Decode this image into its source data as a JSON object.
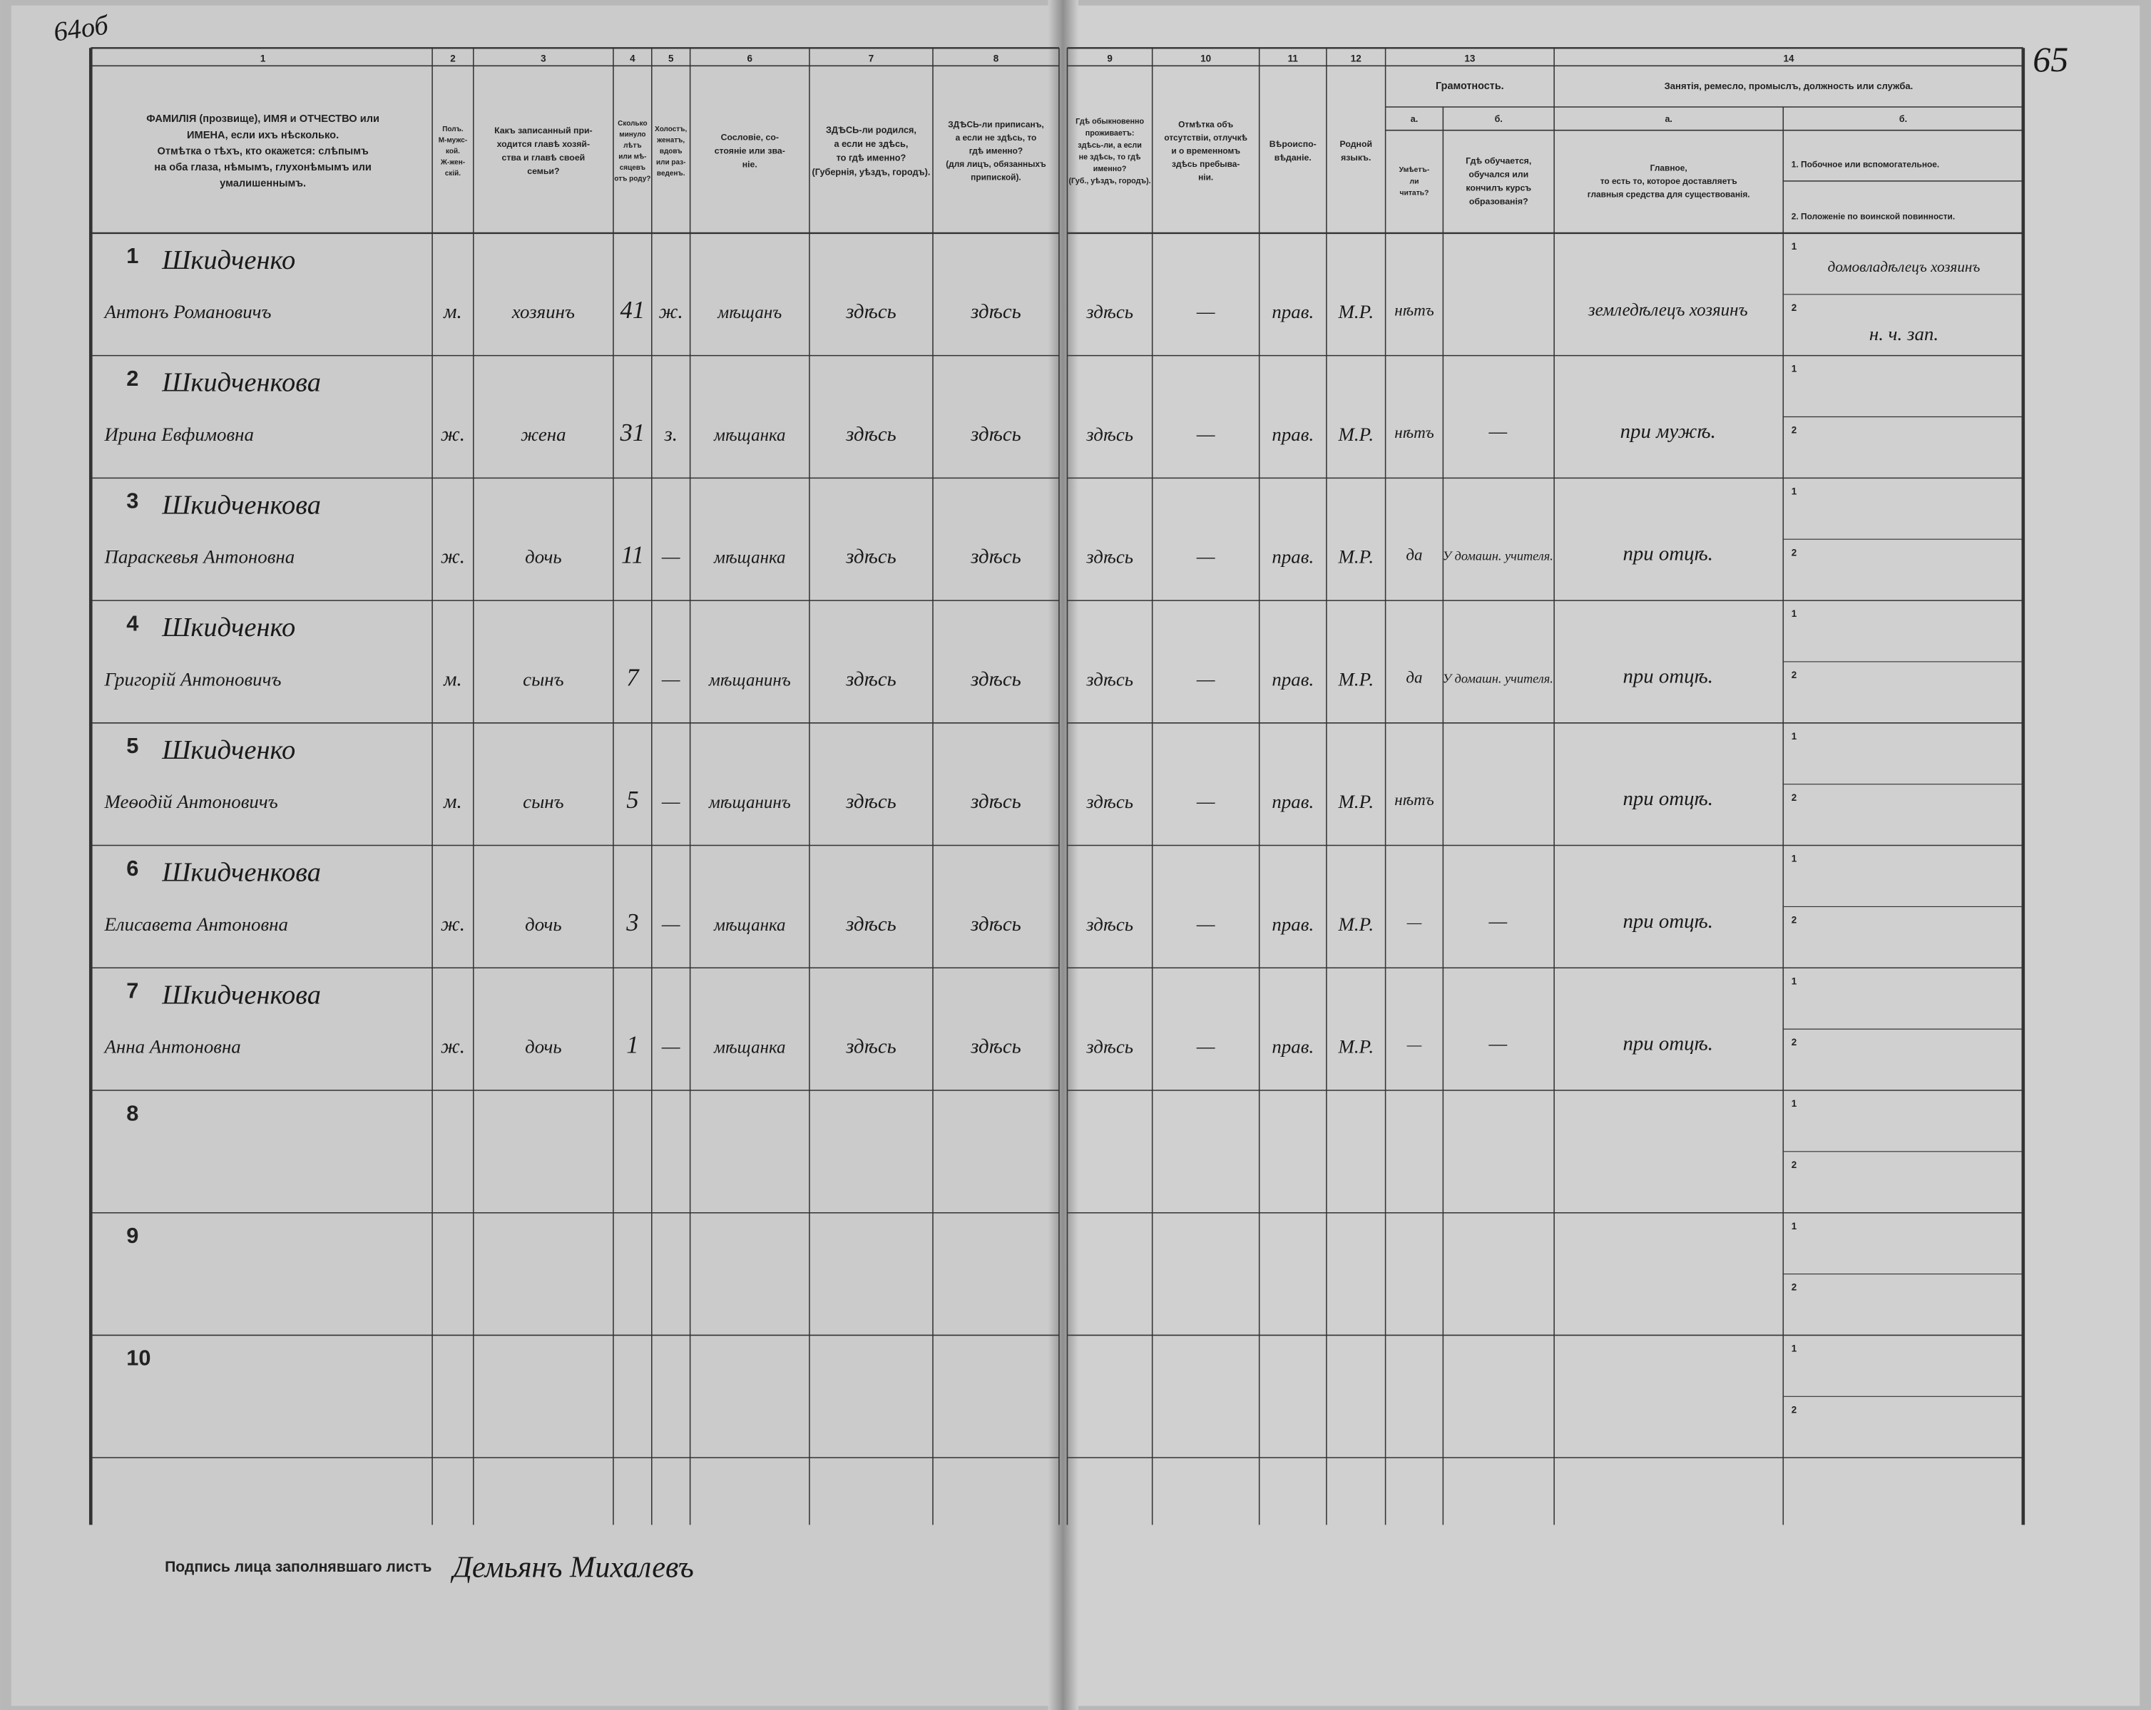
{
  "page_numbers": {
    "left": "64об",
    "right": "65"
  },
  "columns": [
    {
      "number": "1",
      "header": [
        "ФАМИЛІЯ (прозвище), ИМЯ и ОТЧЕСТВО или",
        "ИМЕНА, если ихъ нѣсколько.",
        "Отмѣтка о тѣхъ, кто окажется: слѣпымъ",
        "на оба глаза, нѣмымъ, глухонѣмымъ или",
        "умалишеннымъ."
      ]
    },
    {
      "number": "2",
      "header": [
        "Полъ.",
        "М-мужс-",
        "кой.",
        "Ж-жен-",
        "скій."
      ]
    },
    {
      "number": "3",
      "header": [
        "Какъ записанный при-",
        "ходится главѣ хозяй-",
        "ства и главѣ своей",
        "семьи?"
      ]
    },
    {
      "number": "4",
      "header": [
        "Сколько",
        "минуло",
        "лѣтъ",
        "или мѣ-",
        "сяцевъ",
        "отъ роду?"
      ]
    },
    {
      "number": "5",
      "header": [
        "Холостъ,",
        "женатъ,",
        "вдовъ",
        "или раз-",
        "веденъ."
      ]
    },
    {
      "number": "6",
      "header": [
        "Сословіе, со-",
        "стояніе или зва-",
        "ніе."
      ]
    },
    {
      "number": "7",
      "header": [
        "ЗДѢСЬ-ли родился,",
        "а если не здѣсь,",
        "то гдѣ именно?",
        "(Губернія, уѣздъ, городъ)."
      ]
    },
    {
      "number": "8",
      "header": [
        "ЗДѢСЬ-ли приписанъ,",
        "а если не здѣсь, то",
        "гдѣ именно?",
        "(для лицъ, обязанныхъ",
        "припиской)."
      ]
    },
    {
      "number": "9",
      "header": [
        "Гдѣ обыкновенно",
        "проживаетъ:",
        "здѣсь-ли, а если",
        "не здѣсь, то гдѣ",
        "именно?",
        "(Губ., уѣздъ, городъ)."
      ]
    },
    {
      "number": "10",
      "header": [
        "Отмѣтка объ",
        "отсутствіи, отлучкѣ",
        "и о временномъ",
        "здѣсь пребыва-",
        "ніи."
      ]
    },
    {
      "number": "11",
      "header": [
        "Вѣроиспо-",
        "вѣданіе."
      ]
    },
    {
      "number": "12",
      "header": [
        "Родной",
        "языкъ."
      ]
    },
    {
      "number": "13",
      "title": "Грамотность.",
      "sub": [
        {
          "letter": "а.",
          "header": [
            "Умѣетъ-",
            "ли",
            "читать?"
          ]
        },
        {
          "letter": "б.",
          "header": [
            "Гдѣ обучается,",
            "обучался или",
            "кончилъ курсъ",
            "образованія?"
          ]
        }
      ]
    },
    {
      "number": "14",
      "title": "Занятія, ремесло, промыслъ, должность или служба.",
      "sub": [
        {
          "letter": "а.",
          "header": [
            "Главное,",
            "то есть то, которое доставляетъ",
            "главныя средства для существованія."
          ]
        },
        {
          "letter": "б.",
          "header": [
            "1. Побочное или вспомогательное.",
            "2. Положеніе по воинской повинности."
          ]
        }
      ]
    }
  ],
  "row_marks": [
    "1",
    "2"
  ],
  "rows": [
    {
      "number": "1",
      "surname": "Шкидченко",
      "name": "Антонъ Романовичъ",
      "sex": "м.",
      "relation": "хозяинъ",
      "age": "41",
      "marital": "ж.",
      "estate": "мѣщанъ",
      "birthplace": "здѣсь",
      "registered": "здѣсь",
      "residence": "здѣсь",
      "absence": "—",
      "religion": "прав.",
      "language": "М.Р.",
      "literate": "нѣтъ",
      "occupation": "земледѣлецъ хозяинъ",
      "secondary": "домовладѣлецъ хозяинъ",
      "military": "н. ч. зап."
    },
    {
      "number": "2",
      "surname": "Шкидченкова",
      "name": "Ирина Евфимовна",
      "sex": "ж.",
      "relation": "жена",
      "age": "31",
      "marital": "з.",
      "estate": "мѣщанка",
      "birthplace": "здѣсь",
      "registered": "здѣсь",
      "residence": "здѣсь",
      "absence": "—",
      "religion": "прав.",
      "language": "М.Р.",
      "literate": "нѣтъ",
      "education": "—",
      "occupation": "при мужѣ."
    },
    {
      "number": "3",
      "surname": "Шкидченкова",
      "name": "Параскевья Антоновна",
      "sex": "ж.",
      "relation": "дочь",
      "age": "11",
      "marital": "—",
      "estate": "мѣщанка",
      "birthplace": "здѣсь",
      "registered": "здѣсь",
      "residence": "здѣсь",
      "absence": "—",
      "religion": "прав.",
      "language": "М.Р.",
      "literate": "да",
      "education": "У домашн. учителя.",
      "occupation": "при отцѣ."
    },
    {
      "number": "4",
      "surname": "Шкидченко",
      "name": "Григорій Антоновичъ",
      "sex": "м.",
      "relation": "сынъ",
      "age": "7",
      "marital": "—",
      "estate": "мѣщанинъ",
      "birthplace": "здѣсь",
      "registered": "здѣсь",
      "residence": "здѣсь",
      "absence": "—",
      "religion": "прав.",
      "language": "М.Р.",
      "literate": "да",
      "education": "У домашн. учителя.",
      "occupation": "при отцѣ."
    },
    {
      "number": "5",
      "surname": "Шкидченко",
      "name": "Меѳодій Антоновичъ",
      "sex": "м.",
      "relation": "сынъ",
      "age": "5",
      "marital": "—",
      "estate": "мѣщанинъ",
      "birthplace": "здѣсь",
      "registered": "здѣсь",
      "residence": "здѣсь",
      "absence": "—",
      "religion": "прав.",
      "language": "М.Р.",
      "literate": "нѣтъ",
      "occupation": "при отцѣ."
    },
    {
      "number": "6",
      "surname": "Шкидченкова",
      "name": "Елисавета Антоновна",
      "sex": "ж.",
      "relation": "дочь",
      "age": "3",
      "marital": "—",
      "estate": "мѣщанка",
      "birthplace": "здѣсь",
      "registered": "здѣсь",
      "residence": "здѣсь",
      "absence": "—",
      "religion": "прав.",
      "language": "М.Р.",
      "literate": "—",
      "education": "—",
      "occupation": "при отцѣ."
    },
    {
      "number": "7",
      "surname": "Шкидченкова",
      "name": "Анна Антоновна",
      "sex": "ж.",
      "relation": "дочь",
      "age": "1",
      "marital": "—",
      "estate": "мѣщанка",
      "birthplace": "здѣсь",
      "registered": "здѣсь",
      "residence": "здѣсь",
      "absence": "—",
      "religion": "прав.",
      "language": "М.Р.",
      "literate": "—",
      "education": "—",
      "occupation": "при отцѣ."
    },
    {
      "number": "8"
    },
    {
      "number": "9"
    },
    {
      "number": "10"
    }
  ],
  "signature": {
    "label": "Подпись лица заполнявшаго листъ",
    "value": "Демьянъ Михалевъ"
  }
}
